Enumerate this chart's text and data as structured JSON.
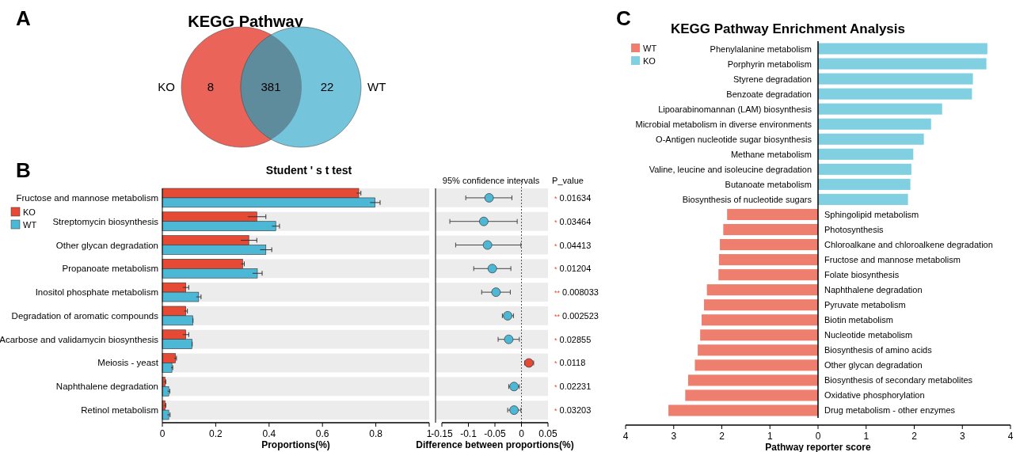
{
  "chart_data": [
    {
      "type": "other",
      "title": "KEGG Pathway",
      "categories": [
        null,
        null,
        null
      ],
      "values": [
        8,
        381,
        22
      ],
      "data_labels": true,
      "annotations": [
        "A",
        "KO",
        "WT"
      ],
      "colors": [
        "#ea6459",
        "#5f8c9c",
        "#74c4dc"
      ]
    },
    {
      "type": "bar",
      "orientation": "horizontal",
      "title": "Student ' s t test",
      "xlabel": "Proportions(%)",
      "legend": "left",
      "annotations": [
        "B"
      ],
      "categories": [
        "Fructose and mannose metabolism",
        "Streptomycin biosynthesis",
        "Other glycan degradation",
        "Propanoate metabolism",
        "Inositol phosphate metabolism",
        "Degradation of aromatic compounds",
        "Acarbose and validamycin biosynthesis",
        "Meiosis - yeast",
        "Naphthalene degradation",
        "Retinol metabolism"
      ],
      "xlim": [
        0,
        1
      ],
      "xticks": [
        0,
        0.2,
        0.4,
        0.6,
        0.8,
        1
      ],
      "bands": [
        {
          "axis": "y",
          "from": "Fructose and mannose metabolism",
          "to": "Fructose and mannose metabolism",
          "color": "#ececec"
        },
        {
          "axis": "y",
          "from": "Streptomycin biosynthesis",
          "to": "Streptomycin biosynthesis",
          "color": "#ececec"
        },
        {
          "axis": "y",
          "from": "Other glycan degradation",
          "to": "Other glycan degradation",
          "color": "#ececec"
        },
        {
          "axis": "y",
          "from": "Propanoate metabolism",
          "to": "Propanoate metabolism",
          "color": "#ececec"
        },
        {
          "axis": "y",
          "from": "Inositol phosphate metabolism",
          "to": "Inositol phosphate metabolism",
          "color": "#ececec"
        },
        {
          "axis": "y",
          "from": "Degradation of aromatic compounds",
          "to": "Degradation of aromatic compounds",
          "color": "#ececec"
        },
        {
          "axis": "y",
          "from": "Acarbose and validamycin biosynthesis",
          "to": "Acarbose and validamycin biosynthesis",
          "color": "#ececec"
        },
        {
          "axis": "y",
          "from": "Meiosis - yeast",
          "to": "Meiosis - yeast",
          "color": "#ececec"
        },
        {
          "axis": "y",
          "from": "Naphthalene degradation",
          "to": "Naphthalene degradation",
          "color": "#ececec"
        },
        {
          "axis": "y",
          "from": "Retinol metabolism",
          "to": "Retinol metabolism",
          "color": "#ececec"
        }
      ],
      "series": [
        {
          "name": "KO",
          "color": "#e64a35",
          "values": [
            0.736,
            0.354,
            0.324,
            0.301,
            0.088,
            0.088,
            0.088,
            0.049,
            0.01,
            0.01
          ],
          "errors": [
            0.008,
            0.034,
            0.03,
            0.006,
            0.011,
            0.006,
            0.011,
            0.004,
            0.003,
            0.003
          ]
        },
        {
          "name": "WT",
          "color": "#4cb8d6",
          "values": [
            0.797,
            0.425,
            0.388,
            0.356,
            0.136,
            0.114,
            0.111,
            0.036,
            0.024,
            0.024
          ],
          "errors": [
            0.019,
            0.014,
            0.022,
            0.018,
            0.009,
            0.001,
            0.001,
            0.003,
            0.004,
            0.005
          ]
        }
      ]
    },
    {
      "type": "scatter",
      "orientation": "horizontal",
      "title": "95% confidence intervals",
      "xlabel": "Difference between proportions(%)",
      "marker": "circle",
      "tick_labels": "x",
      "categories": [
        "Fructose and mannose metabolism",
        "Streptomycin biosynthesis",
        "Other glycan degradation",
        "Propanoate metabolism",
        "Inositol phosphate metabolism",
        "Degradation of aromatic compounds",
        "Acarbose and validamycin biosynthesis",
        "Meiosis - yeast",
        "Naphthalene degradation",
        "Retinol metabolism"
      ],
      "bands": [
        {
          "axis": "y",
          "from": "Fructose and mannose metabolism",
          "to": "Fructose and mannose metabolism",
          "color": "#ececec"
        },
        {
          "axis": "y",
          "from": "Streptomycin biosynthesis",
          "to": "Streptomycin biosynthesis",
          "color": "#ececec"
        },
        {
          "axis": "y",
          "from": "Other glycan degradation",
          "to": "Other glycan degradation",
          "color": "#ececec"
        },
        {
          "axis": "y",
          "from": "Propanoate metabolism",
          "to": "Propanoate metabolism",
          "color": "#ececec"
        },
        {
          "axis": "y",
          "from": "Inositol phosphate metabolism",
          "to": "Inositol phosphate metabolism",
          "color": "#ececec"
        },
        {
          "axis": "y",
          "from": "Degradation of aromatic compounds",
          "to": "Degradation of aromatic compounds",
          "color": "#ececec"
        },
        {
          "axis": "y",
          "from": "Acarbose and validamycin biosynthesis",
          "to": "Acarbose and validamycin biosynthesis",
          "color": "#ececec"
        },
        {
          "axis": "y",
          "from": "Meiosis - yeast",
          "to": "Meiosis - yeast",
          "color": "#ececec"
        },
        {
          "axis": "y",
          "from": "Naphthalene degradation",
          "to": "Naphthalene degradation",
          "color": "#ececec"
        },
        {
          "axis": "y",
          "from": "Retinol metabolism",
          "to": "Retinol metabolism",
          "color": "#ececec"
        }
      ],
      "values": [
        -0.061,
        -0.071,
        -0.064,
        -0.055,
        -0.048,
        -0.026,
        -0.024,
        0.014,
        -0.014,
        -0.014
      ],
      "errors": [
        [
          -0.105,
          -0.018
        ],
        [
          -0.135,
          -0.008
        ],
        [
          -0.124,
          -0.001
        ],
        [
          -0.09,
          -0.02
        ],
        [
          -0.075,
          -0.021
        ],
        [
          -0.036,
          -0.015
        ],
        [
          -0.044,
          -0.004
        ],
        [
          0.006,
          0.023
        ],
        [
          -0.024,
          -0.004
        ],
        [
          -0.026,
          -0.001
        ]
      ],
      "colors": [
        "#4cb8d6",
        "#4cb8d6",
        "#4cb8d6",
        "#4cb8d6",
        "#4cb8d6",
        "#4cb8d6",
        "#4cb8d6",
        "#e64a35",
        "#4cb8d6",
        "#4cb8d6"
      ],
      "xlim": [
        -0.15,
        0.05
      ],
      "xticks": [
        -0.15,
        -0.1,
        -0.05,
        0,
        0.05
      ],
      "ref_lines": [
        {
          "axis": "x",
          "value": 0,
          "line_style": "dotted",
          "color": "#555555"
        }
      ],
      "annotations": [
        "P_value",
        "* 0.01634",
        "* 0.03464",
        "* 0.04413",
        "* 0.01204",
        "** 0.008033",
        "** 0.002523",
        "* 0.02855",
        "* 0.0118",
        "* 0.02231",
        "* 0.03203"
      ]
    },
    {
      "type": "bar",
      "orientation": "horizontal",
      "title": "KEGG Pathway Enrichment Analysis",
      "xlabel": "Pathway reporter score",
      "legend": "top left",
      "annotations": [
        "C"
      ],
      "categories": [
        "Phenylalanine metabolism",
        "Porphyrin metabolism",
        "Styrene degradation",
        "Benzoate degradation",
        "Lipoarabinomannan (LAM) biosynthesis",
        "Microbial metabolism in diverse environments",
        "O-Antigen nucleotide sugar biosynthesis",
        "Methane metabolism",
        "Valine, leucine and isoleucine degradation",
        "Butanoate metabolism",
        "Biosynthesis of nucleotide sugars",
        "Sphingolipid metabolism",
        "Photosynthesis",
        "Chloroalkane and chloroalkene degradation",
        "Fructose and mannose metabolism",
        "Folate biosynthesis",
        "Naphthalene degradation",
        "Pyruvate metabolism",
        "Biotin metabolism",
        "Nucleotide metabolism",
        "Biosynthesis of amino acids",
        "Other glycan degradation",
        "Biosynthesis of secondary metabolites",
        "Oxidative phosphorylation",
        "Drug metabolism - other enzymes"
      ],
      "xlim": [
        -4,
        4
      ],
      "xticks": [
        {
          "value": -4,
          "label": "4"
        },
        {
          "value": -3,
          "label": "3"
        },
        {
          "value": -2,
          "label": "2"
        },
        {
          "value": -1,
          "label": "1"
        },
        0,
        1,
        2,
        3,
        4
      ],
      "series": [
        {
          "name": "WT",
          "color": "#ee7f6f",
          "values": [
            null,
            null,
            null,
            null,
            null,
            null,
            null,
            null,
            null,
            null,
            null,
            -1.89,
            -1.97,
            -2.04,
            -2.06,
            -2.07,
            -2.31,
            -2.37,
            -2.42,
            -2.45,
            -2.5,
            -2.56,
            -2.7,
            -2.76,
            -3.11
          ]
        },
        {
          "name": "KO",
          "color": "#81d0e2",
          "values": [
            3.52,
            3.5,
            3.22,
            3.2,
            2.58,
            2.35,
            2.2,
            1.98,
            1.94,
            1.92,
            1.87,
            null,
            null,
            null,
            null,
            null,
            null,
            null,
            null,
            null,
            null,
            null,
            null,
            null,
            null
          ]
        }
      ]
    }
  ]
}
